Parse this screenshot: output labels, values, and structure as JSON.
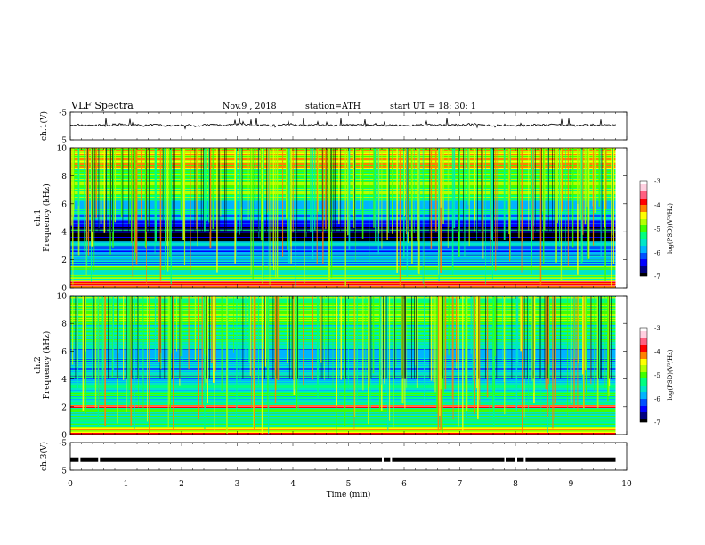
{
  "header": {
    "title": "VLF  Spectra",
    "date": "Nov.9  , 2018",
    "station": "station=ATH",
    "start": "start  UT  =    18: 30: 1"
  },
  "colors": {
    "plot_frame": "#000000",
    "trace": "#000000",
    "colormap": [
      "#000000",
      "#000080",
      "#0000ff",
      "#0050ff",
      "#00b4ff",
      "#00e6c8",
      "#00ff80",
      "#40ff00",
      "#b4ff00",
      "#ffff00",
      "#ff8000",
      "#ff0000",
      "#ff6080",
      "#ffd0e0",
      "#ffffff"
    ]
  },
  "chart_data": [
    {
      "type": "line",
      "panel": "ch1-waveform",
      "ylabel": "ch.1(V)",
      "ylim": [
        -5,
        5
      ],
      "yticks": [
        "5",
        "-5"
      ],
      "series": [
        {
          "baseline": 0.3,
          "noise_amplitude": 0.6
        }
      ]
    },
    {
      "type": "heatmap",
      "panel": "ch1-spectrogram",
      "ylabel": "ch.1\nFrequency (kHz)",
      "ylim": [
        0,
        10
      ],
      "yticks": [
        "0",
        "2",
        "4",
        "6",
        "8",
        "10"
      ],
      "colorbar": {
        "label": "log(PSD)(V²/Hz)",
        "range": [
          -7,
          -3
        ],
        "ticks": [
          "-3",
          "-4",
          "-5",
          "-6",
          "-7"
        ]
      },
      "band_levels": [
        {
          "fmin": 0.0,
          "fmax": 0.5,
          "level": -3.8
        },
        {
          "fmin": 0.5,
          "fmax": 1.5,
          "level": -5.2
        },
        {
          "fmin": 1.5,
          "fmax": 3.3,
          "level": -5.9
        },
        {
          "fmin": 3.3,
          "fmax": 4.8,
          "level": -6.6
        },
        {
          "fmin": 4.8,
          "fmax": 6.4,
          "level": -5.8
        },
        {
          "fmin": 6.4,
          "fmax": 8.5,
          "level": -5.0
        },
        {
          "fmin": 8.5,
          "fmax": 10.0,
          "level": -4.5
        }
      ]
    },
    {
      "type": "heatmap",
      "panel": "ch2-spectrogram",
      "ylabel": "ch.2\nFrequency (kHz)",
      "ylim": [
        0,
        10
      ],
      "yticks": [
        "0",
        "2",
        "4",
        "6",
        "8",
        "10"
      ],
      "colorbar": {
        "label": "log(PSD)(V²/Hz)",
        "range": [
          -7,
          -3
        ],
        "ticks": [
          "-3",
          "-4",
          "-5",
          "-6",
          "-7"
        ]
      },
      "band_levels": [
        {
          "fmin": 0.0,
          "fmax": 0.5,
          "level": -4.2
        },
        {
          "fmin": 0.5,
          "fmax": 1.9,
          "level": -5.3
        },
        {
          "fmin": 1.9,
          "fmax": 2.1,
          "level": -3.9
        },
        {
          "fmin": 2.1,
          "fmax": 4.0,
          "level": -5.5
        },
        {
          "fmin": 4.0,
          "fmax": 6.2,
          "level": -5.8
        },
        {
          "fmin": 6.2,
          "fmax": 8.2,
          "level": -5.3
        },
        {
          "fmin": 8.2,
          "fmax": 10.0,
          "level": -5.0
        }
      ]
    },
    {
      "type": "line",
      "panel": "ch3-waveform",
      "ylabel": "ch.3(V)",
      "ylim": [
        -5,
        5
      ],
      "yticks": [
        "5",
        "-5"
      ],
      "series": [
        {
          "baseline": -1.2
        }
      ]
    }
  ],
  "xaxis": {
    "label": "Time  (min)",
    "range": [
      0,
      10
    ],
    "ticks": [
      "0",
      "1",
      "2",
      "3",
      "4",
      "5",
      "6",
      "7",
      "8",
      "9",
      "10"
    ],
    "data_end": 9.8
  }
}
